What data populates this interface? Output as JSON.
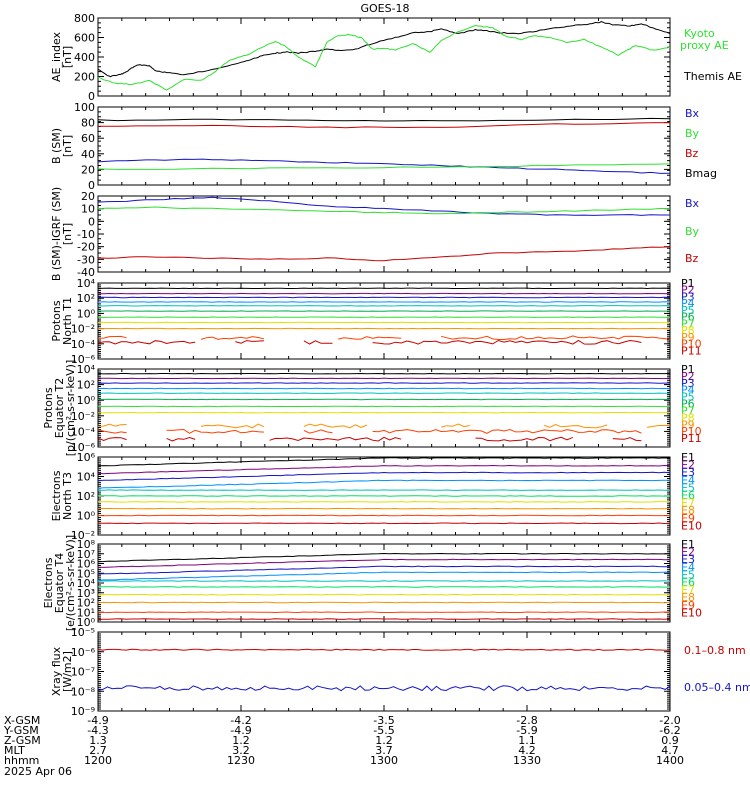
{
  "title": "GOES-18",
  "date": "2025 Apr 06",
  "colors": {
    "P": [
      "#000000",
      "#7f007f",
      "#1414c8",
      "#0090ff",
      "#00c0c0",
      "#00b050",
      "#30e030",
      "#e0e000",
      "#ff9000",
      "#ff4000",
      "#c80000"
    ],
    "E": [
      "#000000",
      "#7f007f",
      "#1414c8",
      "#0090ff",
      "#00c0c0",
      "#00e060",
      "#e0e000",
      "#ff9000",
      "#ff4000",
      "#c80000"
    ]
  },
  "xaxis": {
    "ticks": [
      "1200",
      "1230",
      "1300",
      "1330",
      "1400"
    ],
    "rows": [
      {
        "name": "X-GSM",
        "vals": [
          "-4.9",
          "-4.2",
          "-3.5",
          "-2.8",
          "-2.0"
        ]
      },
      {
        "name": "Y-GSM",
        "vals": [
          "-4.3",
          "-4.9",
          "-5.5",
          "-5.9",
          "-6.2"
        ]
      },
      {
        "name": "Z-GSM",
        "vals": [
          "1.3",
          "1.2",
          "1.2",
          "1.1",
          "0.9"
        ]
      },
      {
        "name": "MLT",
        "vals": [
          "2.7",
          "3.2",
          "3.7",
          "4.2",
          "4.7"
        ]
      },
      {
        "name": "hhmm",
        "vals": [
          "1200",
          "1230",
          "1300",
          "1330",
          "1400"
        ]
      }
    ]
  },
  "chart_data": [
    {
      "type": "line",
      "ylabel": [
        "AE_index",
        "[nT]"
      ],
      "ylim": [
        0,
        800
      ],
      "yticks": [
        "0",
        "200",
        "400",
        "600",
        "800"
      ],
      "series": [
        {
          "name": "Themis AE",
          "color": "#000000",
          "x": [
            0,
            2,
            3,
            4,
            5,
            6,
            7,
            9,
            10,
            12,
            15,
            20,
            24,
            27,
            29,
            31,
            33,
            35,
            38,
            40,
            42,
            45,
            48,
            52,
            55,
            58,
            60,
            63,
            66,
            68,
            70,
            73,
            76,
            80,
            83,
            86,
            88,
            90,
            93,
            95,
            97,
            100
          ],
          "y": [
            280,
            200,
            210,
            220,
            250,
            290,
            320,
            310,
            260,
            240,
            220,
            270,
            330,
            380,
            420,
            440,
            450,
            440,
            460,
            480,
            470,
            480,
            540,
            600,
            650,
            660,
            690,
            640,
            680,
            670,
            650,
            640,
            660,
            700,
            720,
            740,
            760,
            730,
            720,
            740,
            700,
            640
          ]
        },
        {
          "name": "Kyoto proxy AE",
          "color": "#30e030",
          "x": [
            0,
            3,
            6,
            9,
            12,
            15,
            18,
            20,
            23,
            26,
            29,
            31,
            33,
            35,
            38,
            40,
            42,
            44,
            46,
            48,
            50,
            52,
            55,
            58,
            60,
            63,
            66,
            69,
            71,
            74,
            76,
            79,
            82,
            85,
            88,
            91,
            94,
            97,
            100
          ],
          "y": [
            190,
            130,
            120,
            160,
            60,
            170,
            160,
            230,
            370,
            420,
            510,
            560,
            500,
            400,
            300,
            550,
            620,
            630,
            600,
            480,
            490,
            470,
            540,
            450,
            570,
            660,
            720,
            700,
            620,
            580,
            620,
            600,
            550,
            580,
            500,
            420,
            520,
            470,
            500
          ]
        }
      ],
      "labels": [
        {
          "text": "Kyoto",
          "color": "#30e030"
        },
        {
          "text": "proxy AE",
          "color": "#30e030"
        },
        {
          "text": "Themis AE",
          "color": "#000000"
        }
      ]
    },
    {
      "type": "line",
      "ylabel": [
        "B (SM)",
        "[nT]"
      ],
      "ylim": [
        0,
        100
      ],
      "yticks": [
        "0",
        "20",
        "40",
        "60",
        "80",
        "100"
      ],
      "series": [
        {
          "name": "Bmag",
          "color": "#000000",
          "x": [
            0,
            20,
            40,
            60,
            80,
            100
          ],
          "y": [
            83,
            84,
            83,
            82,
            84,
            85
          ]
        },
        {
          "name": "Bz",
          "color": "#c80000",
          "x": [
            0,
            20,
            40,
            60,
            80,
            100
          ],
          "y": [
            75,
            76,
            74,
            74,
            78,
            80
          ]
        },
        {
          "name": "Bx",
          "color": "#1414c8",
          "x": [
            0,
            10,
            20,
            30,
            40,
            50,
            60,
            70,
            80,
            90,
            100
          ],
          "y": [
            30,
            32,
            33,
            31,
            29,
            27,
            25,
            22,
            20,
            17,
            15
          ]
        },
        {
          "name": "By",
          "color": "#30e030",
          "x": [
            0,
            20,
            40,
            60,
            80,
            100
          ],
          "y": [
            20,
            21,
            22,
            23,
            25,
            27
          ]
        }
      ],
      "labels": [
        {
          "text": "Bx",
          "color": "#1414c8"
        },
        {
          "text": "By",
          "color": "#30e030"
        },
        {
          "text": "Bz",
          "color": "#c80000"
        },
        {
          "text": "Bmag",
          "color": "#000000"
        }
      ]
    },
    {
      "type": "line",
      "ylabel": [
        "B (SM)-IGRF (SM)",
        "[nT]"
      ],
      "ylim": [
        -40,
        20
      ],
      "yticks": [
        "-40",
        "-30",
        "-20",
        "-10",
        "0",
        "10",
        "20"
      ],
      "series": [
        {
          "name": "Bx",
          "color": "#1414c8",
          "x": [
            0,
            10,
            20,
            30,
            40,
            50,
            60,
            70,
            80,
            90,
            100
          ],
          "y": [
            15,
            17,
            19,
            16,
            12,
            10,
            8,
            6,
            5,
            5,
            5
          ]
        },
        {
          "name": "By",
          "color": "#30e030",
          "x": [
            0,
            10,
            20,
            30,
            40,
            50,
            60,
            70,
            80,
            90,
            100
          ],
          "y": [
            10,
            11,
            10,
            9,
            8,
            7,
            6,
            7,
            8,
            9,
            10
          ]
        },
        {
          "name": "Bz",
          "color": "#c80000",
          "x": [
            0,
            10,
            20,
            30,
            40,
            50,
            60,
            70,
            80,
            90,
            100
          ],
          "y": [
            -29,
            -28,
            -29,
            -30,
            -29,
            -31,
            -28,
            -25,
            -24,
            -22,
            -20
          ]
        }
      ],
      "labels": [
        {
          "text": "Bx",
          "color": "#1414c8"
        },
        {
          "text": "By",
          "color": "#30e030"
        },
        {
          "text": "Bz",
          "color": "#c80000"
        }
      ]
    },
    {
      "type": "line",
      "ylabel": [
        "Protons",
        "North T1"
      ],
      "yscale": "log",
      "ylim": [
        -6,
        4
      ],
      "yticks": [
        "10⁴",
        "10²",
        "10⁰",
        "10⁻²",
        "10⁻⁴",
        "10⁻⁶"
      ],
      "ytickvals": [
        4,
        2,
        0,
        -2,
        -4,
        -6
      ],
      "levels": [
        3.3,
        2.6,
        2.1,
        1.5,
        1.0,
        0.3,
        -0.5,
        -1.2,
        -2.0,
        -3.2,
        -3.8
      ],
      "labels": [
        "P1",
        "P2",
        "P3",
        "P4",
        "P5",
        "P6",
        "P7",
        "P8",
        "P9",
        "P10",
        "P11"
      ]
    },
    {
      "type": "line",
      "ylabel": [
        "Protons",
        "Equator T2",
        "[p/(cm²-s-sr-keV)]"
      ],
      "yscale": "log",
      "ylim": [
        -6,
        4
      ],
      "yticks": [
        "10⁴",
        "10²",
        "10⁰",
        "10⁻²",
        "10⁻⁴",
        "10⁻⁶"
      ],
      "ytickvals": [
        4,
        2,
        0,
        -2,
        -4,
        -6
      ],
      "levels": [
        3.4,
        2.8,
        2.2,
        1.5,
        0.9,
        0.1,
        -0.8,
        -1.6,
        -3.3,
        -4.0,
        -5.0
      ],
      "labels": [
        "P1",
        "P2",
        "P3",
        "P4",
        "P5",
        "P6",
        "P7",
        "P8",
        "P9",
        "P10",
        "P11"
      ]
    },
    {
      "type": "line",
      "ylabel": [
        "Electrons",
        "North T3"
      ],
      "yscale": "log",
      "ylim": [
        -2,
        6
      ],
      "yticks": [
        "10⁶",
        "10⁴",
        "10²",
        "10⁰",
        "10⁻²"
      ],
      "ytickvals": [
        6,
        4,
        2,
        0,
        -2
      ],
      "levels": [
        5.5,
        4.7,
        4.0,
        3.2,
        2.6,
        2.0,
        1.4,
        0.7,
        0.0,
        -0.8
      ],
      "labels": [
        "E1",
        "E2",
        "E3",
        "E4",
        "E5",
        "E6",
        "E7",
        "E8",
        "E9",
        "E10"
      ]
    },
    {
      "type": "line",
      "ylabel": [
        "Electrons",
        "Equator T4",
        "[e/(cm²-s-sr-keV)]"
      ],
      "yscale": "log",
      "ylim": [
        0,
        8
      ],
      "yticks": [
        "10⁸",
        "10⁷",
        "10⁶",
        "10⁵",
        "10⁴",
        "10³",
        "10²",
        "10¹",
        "10⁰"
      ],
      "ytickvals": [
        8,
        7,
        6,
        5,
        4,
        3,
        2,
        1,
        0
      ],
      "levels": [
        6.6,
        6.0,
        5.3,
        4.7,
        4.2,
        3.6,
        2.8,
        2.0,
        1.0,
        0.3
      ],
      "labels": [
        "E1",
        "E2",
        "E3",
        "E4",
        "E5",
        "E6",
        "E7",
        "E8",
        "E9",
        "E10"
      ]
    },
    {
      "type": "line",
      "ylabel": [
        "Xray flux",
        "[W/m2]"
      ],
      "yscale": "log",
      "ylim": [
        -9,
        -5
      ],
      "yticks": [
        "10⁻⁵",
        "10⁻⁶",
        "10⁻⁷",
        "10⁻⁸",
        "10⁻⁹"
      ],
      "ytickvals": [
        -5,
        -6,
        -7,
        -8,
        -9
      ],
      "series": [
        {
          "name": "0.1-0.8 nm",
          "color": "#c80000",
          "level": -5.9
        },
        {
          "name": "0.05-0.4 nm",
          "color": "#1414c8",
          "level": -7.85
        }
      ],
      "labels": [
        {
          "text": "0.1–0.8 nm",
          "color": "#c80000"
        },
        {
          "text": "0.05–0.4 nm",
          "color": "#1414c8"
        }
      ]
    }
  ]
}
